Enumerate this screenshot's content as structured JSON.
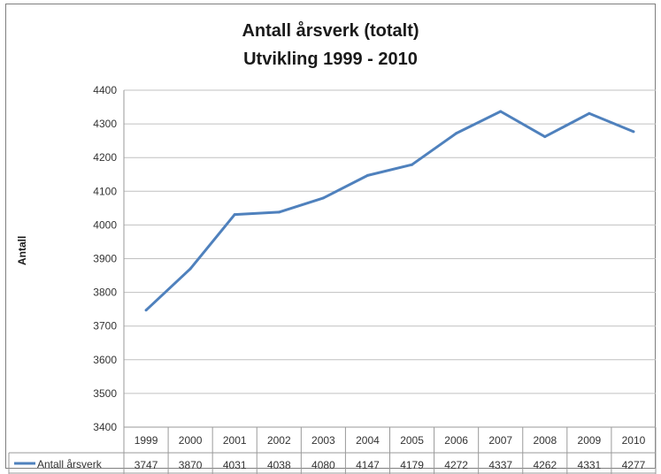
{
  "chart_data": {
    "type": "line",
    "title": "Antall årsverk (totalt)",
    "subtitle": "Utvikling 1999 - 2010",
    "ylabel": "Antall",
    "xlabel": "",
    "ylim": [
      3400,
      4400
    ],
    "yticks": [
      3400,
      3500,
      3600,
      3700,
      3800,
      3900,
      4000,
      4100,
      4200,
      4300,
      4400
    ],
    "categories": [
      "1999",
      "2000",
      "2001",
      "2002",
      "2003",
      "2004",
      "2005",
      "2006",
      "2007",
      "2008",
      "2009",
      "2010"
    ],
    "series": [
      {
        "name": "Antall årsverk",
        "values": [
          3747,
          3870,
          4031,
          4038,
          4080,
          4147,
          4179,
          4272,
          4337,
          4262,
          4331,
          4277
        ],
        "color": "#4f81bd"
      }
    ],
    "grid": true,
    "legend": "data-table",
    "data_table": true
  }
}
